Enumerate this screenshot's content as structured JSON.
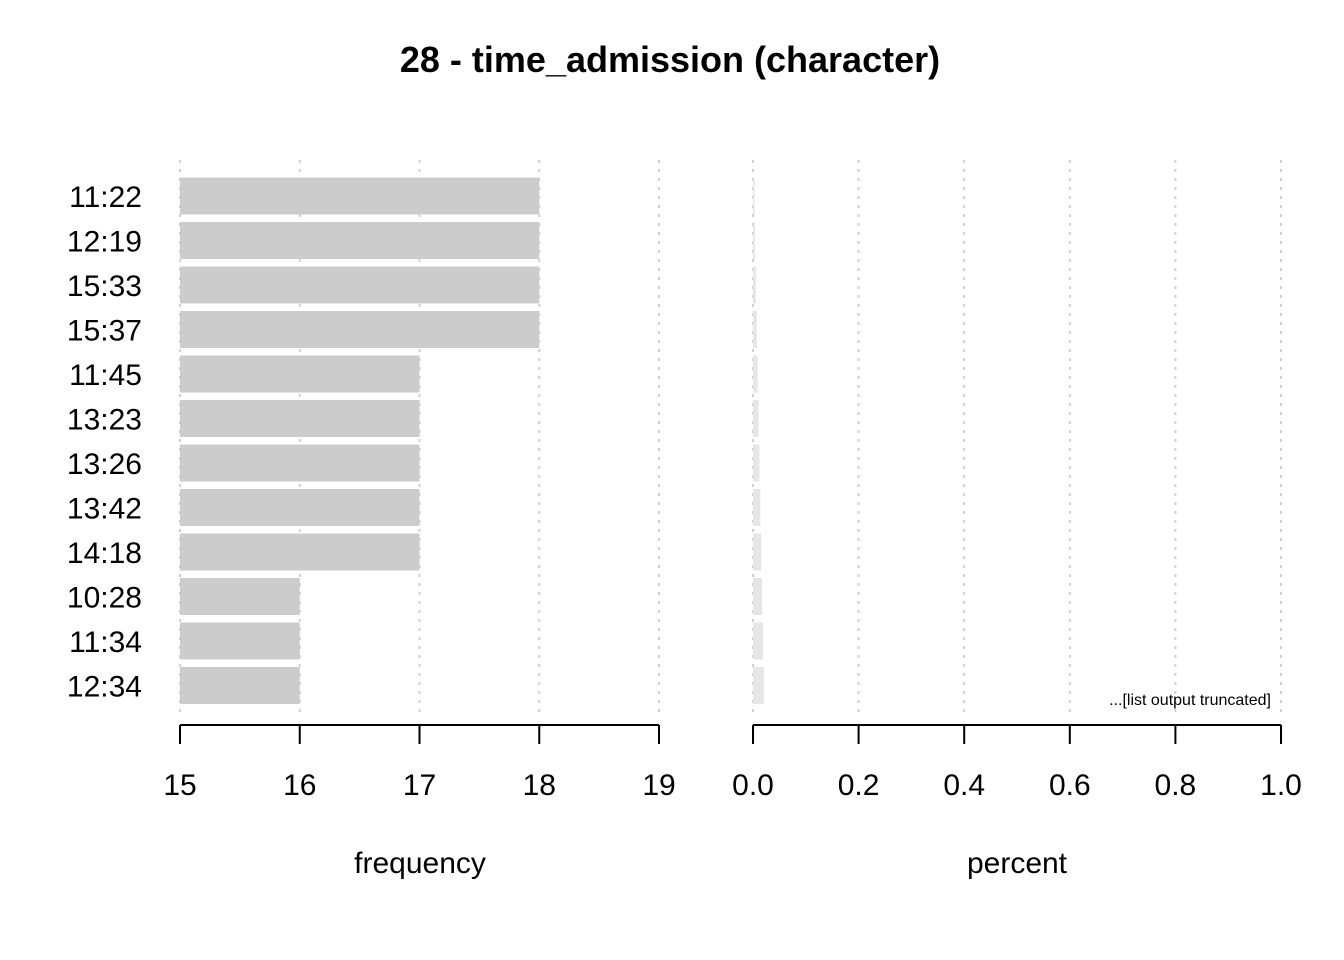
{
  "chart_data": {
    "title": "28 - time_admission (character)",
    "categories": [
      "11:22",
      "12:19",
      "15:33",
      "15:37",
      "11:45",
      "13:23",
      "13:26",
      "13:42",
      "14:18",
      "10:28",
      "11:34",
      "12:34"
    ],
    "panels": [
      {
        "type": "bar",
        "orientation": "horizontal",
        "xlabel": "frequency",
        "values": [
          18,
          18,
          18,
          18,
          17,
          17,
          17,
          17,
          17,
          16,
          16,
          16
        ],
        "xlim": [
          15,
          19
        ],
        "ticks": [
          15,
          16,
          17,
          18,
          19
        ],
        "tick_labels": [
          "15",
          "16",
          "17",
          "18",
          "19"
        ],
        "bar_color": "#cccccc",
        "grid": true
      },
      {
        "type": "bar",
        "orientation": "horizontal",
        "xlabel": "percent",
        "cumulative_values": [
          0.0018,
          0.0036,
          0.0054,
          0.0072,
          0.0089,
          0.0106,
          0.0123,
          0.014,
          0.0157,
          0.0173,
          0.0189,
          0.0205
        ],
        "values": [
          0.0018,
          0.0018,
          0.0018,
          0.0018,
          0.0017,
          0.0017,
          0.0017,
          0.0017,
          0.0017,
          0.0016,
          0.0016,
          0.0016
        ],
        "xlim": [
          0,
          1
        ],
        "ticks": [
          0,
          0.2,
          0.4,
          0.6,
          0.8,
          1.0
        ],
        "tick_labels": [
          "0.0",
          "0.2",
          "0.4",
          "0.6",
          "0.8",
          "1.0"
        ],
        "bar_color": "#e6e6e6",
        "grid": true
      }
    ],
    "annotation": "...[list output truncated]",
    "grid_color": "#d0d0d0"
  }
}
